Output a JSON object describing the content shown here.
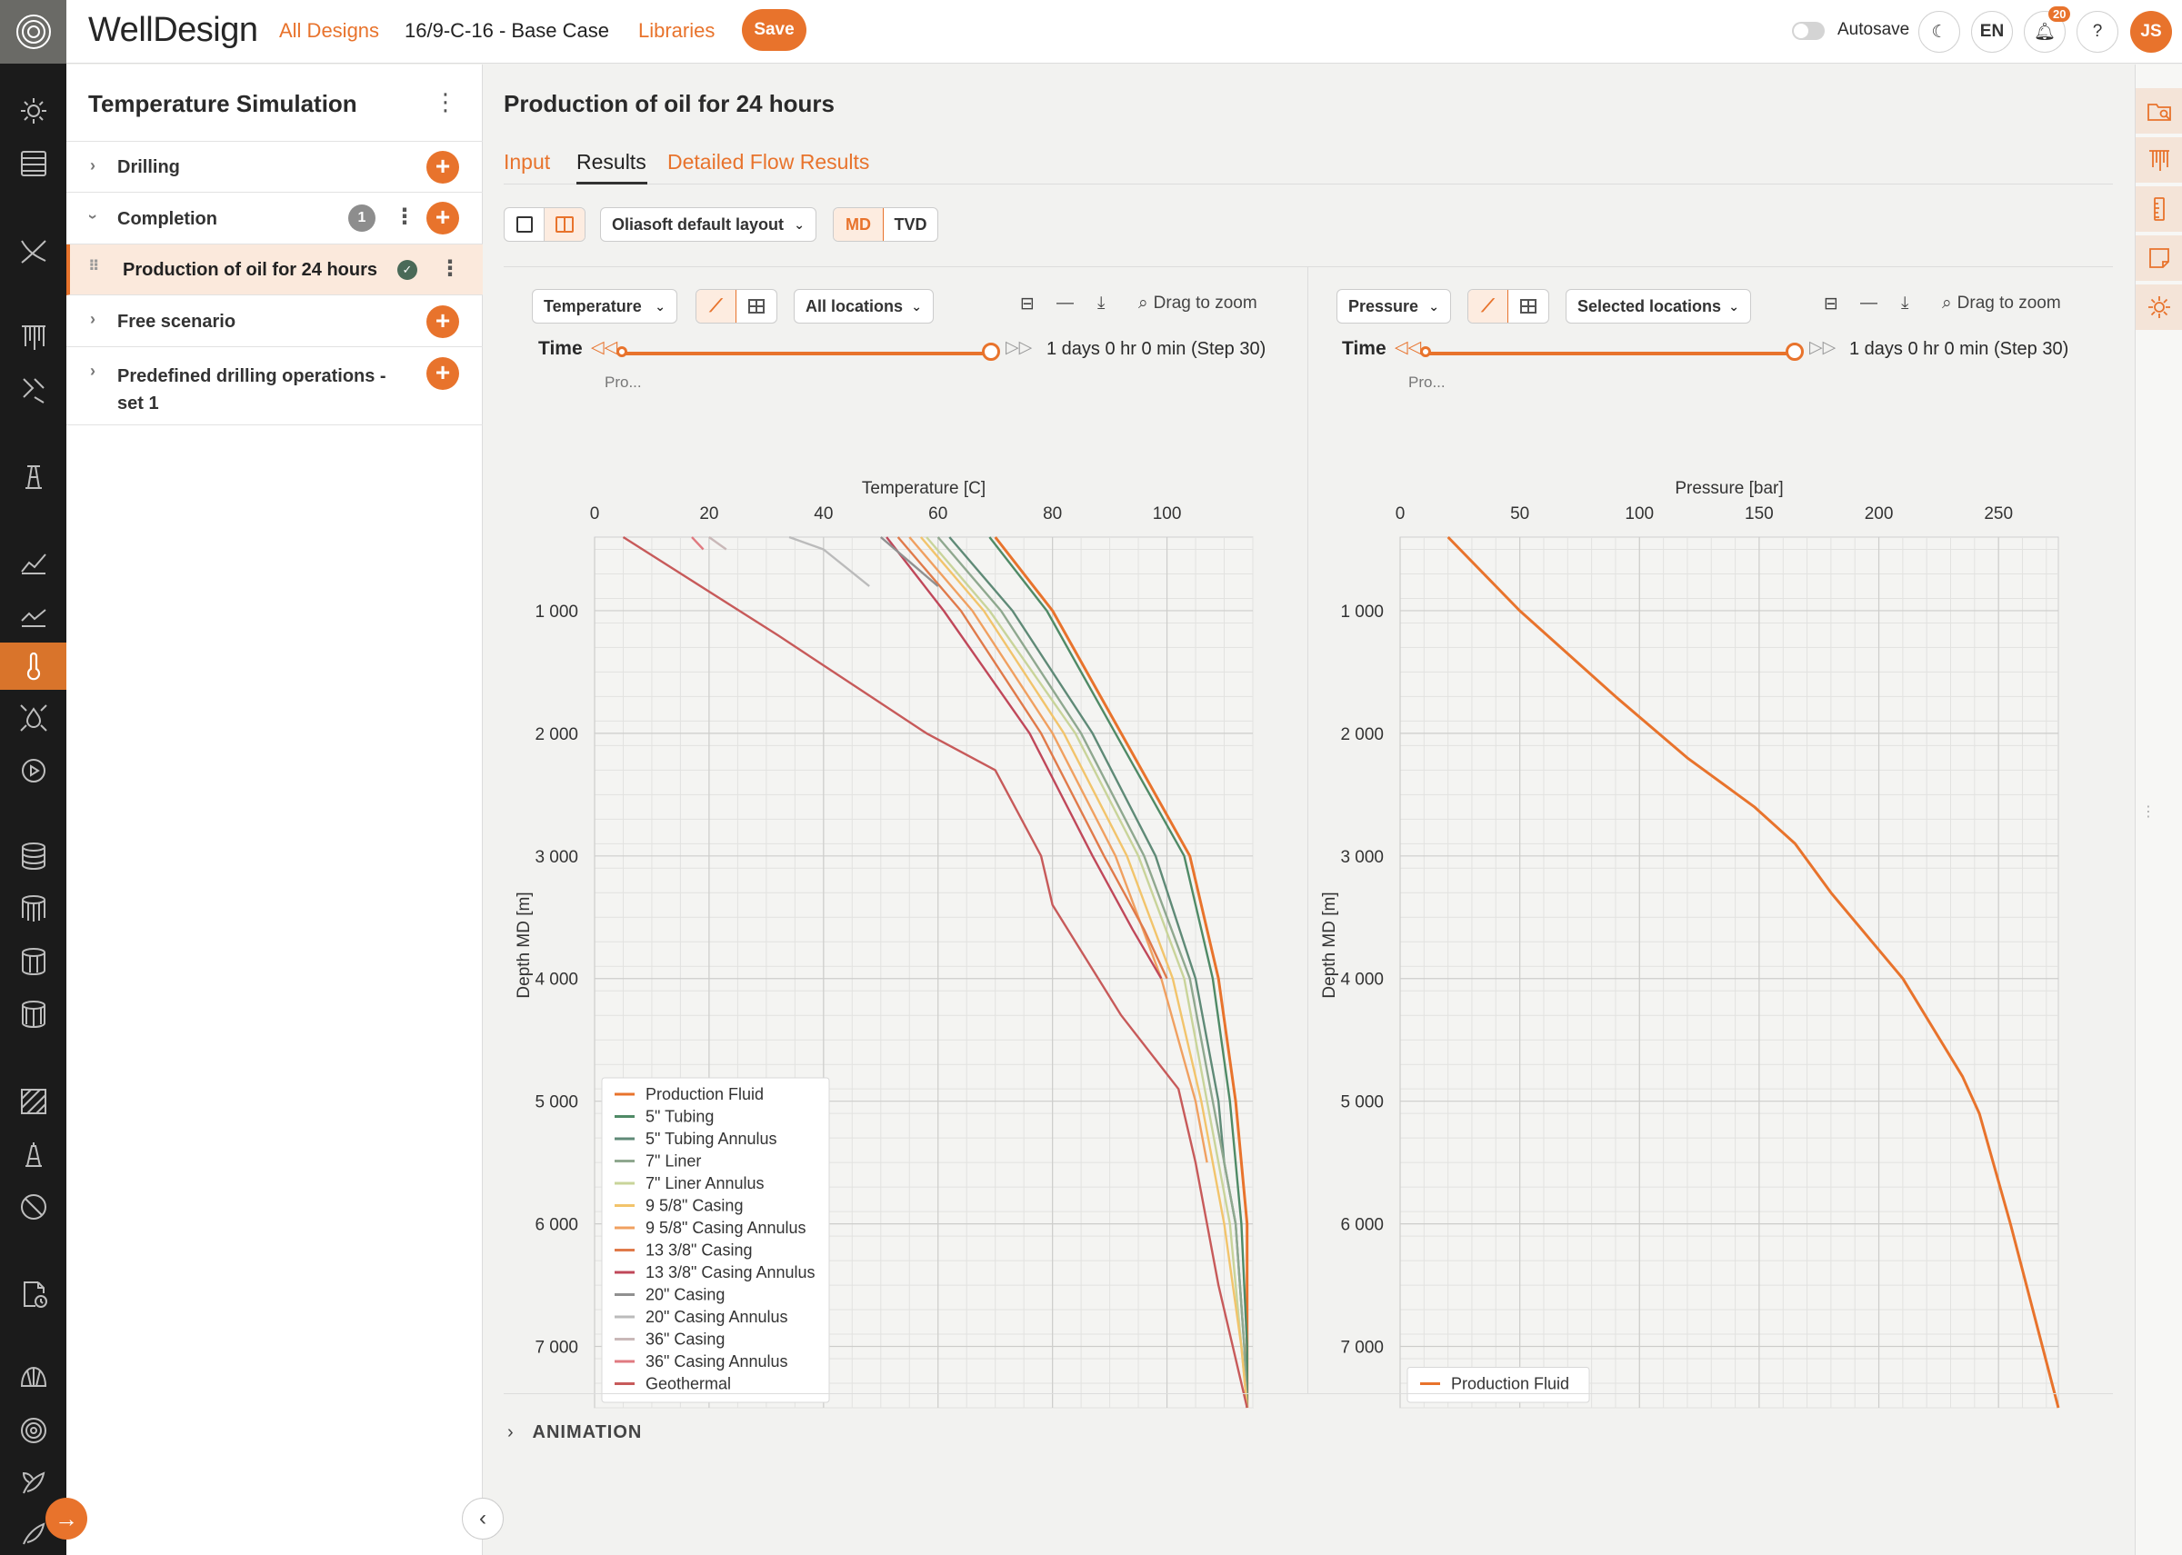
{
  "topbar": {
    "brand": "WellDesign",
    "nav_all_designs": "All Designs",
    "nav_current_design": "16/9-C-16 - Base Case",
    "nav_libraries": "Libraries",
    "save_label": "Save",
    "autosave_label": "Autosave",
    "language": "EN",
    "notification_count": "20",
    "help": "?",
    "user_initials": "JS"
  },
  "sidebar": {
    "title": "Temperature Simulation",
    "items": [
      {
        "label": "Drilling"
      },
      {
        "label": "Completion",
        "count": "1"
      },
      {
        "label": "Production of oil for 24 hours"
      },
      {
        "label": "Free scenario"
      },
      {
        "label": "Predefined drilling operations - set 1"
      }
    ]
  },
  "main": {
    "title": "Production of oil for 24 hours",
    "tabs": [
      {
        "label": "Input"
      },
      {
        "label": "Results"
      },
      {
        "label": "Detailed Flow Results"
      }
    ],
    "layout_select": "Oliasoft default layout",
    "md_label": "MD",
    "tvd_label": "TVD",
    "animation_label": "ANIMATION"
  },
  "panels": {
    "left": {
      "variable": "Temperature",
      "locations": "All locations",
      "drag_to_zoom": "Drag to zoom",
      "time_label": "Time",
      "time_value": "1 days 0 hr 0 min (Step 30)",
      "truncated_label": "Pro..."
    },
    "right": {
      "variable": "Pressure",
      "locations": "Selected locations",
      "drag_to_zoom": "Drag to zoom",
      "time_label": "Time",
      "time_value": "1 days 0 hr 0 min (Step 30)",
      "truncated_label": "Pro..."
    }
  },
  "chart_data": [
    {
      "type": "line",
      "xlabel": "Temperature [C]",
      "ylabel": "Depth MD [m]",
      "xlim": [
        0,
        115
      ],
      "ylim": [
        400,
        7500
      ],
      "y_inverted": true,
      "x_axis_position": "top",
      "x_ticks": [
        0,
        20,
        40,
        60,
        80,
        100
      ],
      "y_ticks": [
        1000,
        2000,
        3000,
        4000,
        5000,
        6000,
        7000
      ],
      "y_tick_labels": [
        "1 000",
        "2 000",
        "3 000",
        "4 000",
        "5 000",
        "6 000",
        "7 000"
      ],
      "grid": true,
      "legend_position": "bottom-left",
      "series": [
        {
          "name": "Production Fluid",
          "color": "#e8732c",
          "points": [
            [
              70,
              400
            ],
            [
              80,
              1000
            ],
            [
              92,
              2000
            ],
            [
              104,
              3000
            ],
            [
              109,
              4000
            ],
            [
              112,
              5000
            ],
            [
              113,
              5500
            ],
            [
              114,
              6000
            ],
            [
              114,
              7000
            ],
            [
              114,
              7500
            ]
          ]
        },
        {
          "name": "5\" Tubing",
          "color": "#4f8a66",
          "points": [
            [
              69,
              400
            ],
            [
              79,
              1000
            ],
            [
              91,
              2000
            ],
            [
              103,
              3000
            ],
            [
              108,
              4000
            ],
            [
              111,
              5000
            ],
            [
              112,
              5500
            ],
            [
              113,
              6000
            ],
            [
              114,
              7000
            ],
            [
              114,
              7500
            ]
          ]
        },
        {
          "name": "5\" Tubing Annulus",
          "color": "#5f8a77",
          "points": [
            [
              62,
              400
            ],
            [
              73,
              1000
            ],
            [
              87,
              2000
            ],
            [
              98,
              3000
            ],
            [
              105,
              4000
            ],
            [
              109,
              5000
            ],
            [
              110,
              5500
            ],
            [
              112,
              6000
            ],
            [
              113.5,
              7000
            ],
            [
              114,
              7500
            ]
          ]
        },
        {
          "name": "7\" Liner",
          "color": "#8fa88f",
          "points": [
            [
              60,
              400
            ],
            [
              71,
              1000
            ],
            [
              85,
              2000
            ],
            [
              96,
              3000
            ],
            [
              104,
              4000
            ],
            [
              108,
              5000
            ],
            [
              110,
              5500
            ],
            [
              112,
              6000
            ],
            [
              113.5,
              7000
            ],
            [
              114,
              7500
            ]
          ]
        },
        {
          "name": "7\" Liner Annulus",
          "color": "#c9d49a",
          "points": [
            [
              58,
              400
            ],
            [
              69,
              1000
            ],
            [
              84,
              2000
            ],
            [
              95,
              3000
            ],
            [
              103,
              4000
            ],
            [
              107,
              5000
            ],
            [
              109,
              5500
            ],
            [
              111,
              6000
            ],
            [
              113,
              7000
            ],
            [
              114,
              7500
            ]
          ]
        },
        {
          "name": "9 5/8\" Casing",
          "color": "#f2c46b",
          "points": [
            [
              57,
              400
            ],
            [
              68,
              1000
            ],
            [
              82,
              2000
            ],
            [
              93,
              3000
            ],
            [
              101,
              4000
            ],
            [
              106,
              5000
            ],
            [
              108,
              5500
            ],
            [
              110,
              6000
            ],
            [
              113,
              7000
            ],
            [
              114,
              7500
            ]
          ]
        },
        {
          "name": "9 5/8\" Casing Annulus",
          "color": "#f0a060",
          "points": [
            [
              55,
              400
            ],
            [
              66,
              1000
            ],
            [
              80,
              2000
            ],
            [
              91,
              3000
            ],
            [
              99,
              4000
            ],
            [
              105,
              5000
            ],
            [
              107,
              5500
            ]
          ]
        },
        {
          "name": "13 3/8\" Casing",
          "color": "#e07a4a",
          "points": [
            [
              53,
              400
            ],
            [
              64,
              1000
            ],
            [
              78,
              2000
            ],
            [
              89,
              3000
            ],
            [
              96,
              3600
            ],
            [
              100,
              4000
            ]
          ]
        },
        {
          "name": "13 3/8\" Casing Annulus",
          "color": "#c0485a",
          "points": [
            [
              51,
              400
            ],
            [
              61,
              1000
            ],
            [
              76,
              2000
            ],
            [
              87,
              3000
            ],
            [
              94,
              3600
            ],
            [
              99,
              4000
            ]
          ]
        },
        {
          "name": "20\" Casing",
          "color": "#909090",
          "points": [
            [
              50,
              400
            ],
            [
              60,
              800
            ]
          ]
        },
        {
          "name": "20\" Casing Annulus",
          "color": "#bbbbbb",
          "points": [
            [
              34,
              400
            ],
            [
              40,
              500
            ],
            [
              48,
              800
            ]
          ]
        },
        {
          "name": "36\" Casing",
          "color": "#c9b8b8",
          "points": [
            [
              20,
              400
            ],
            [
              23,
              500
            ]
          ]
        },
        {
          "name": "36\" Casing Annulus",
          "color": "#e07a80",
          "points": [
            [
              17,
              400
            ],
            [
              19,
              500
            ]
          ]
        },
        {
          "name": "Geothermal",
          "color": "#c75a5a",
          "points": [
            [
              5,
              400
            ],
            [
              32,
              1200
            ],
            [
              58,
              2000
            ],
            [
              70,
              2300
            ],
            [
              78,
              3000
            ],
            [
              80,
              3400
            ],
            [
              92,
              4300
            ],
            [
              102,
              4900
            ],
            [
              105,
              5500
            ],
            [
              109,
              6500
            ],
            [
              114,
              7500
            ]
          ]
        }
      ]
    },
    {
      "type": "line",
      "xlabel": "Pressure [bar]",
      "ylabel": "Depth MD [m]",
      "xlim": [
        0,
        275
      ],
      "ylim": [
        400,
        7500
      ],
      "y_inverted": true,
      "x_axis_position": "top",
      "x_ticks": [
        0,
        50,
        100,
        150,
        200,
        250
      ],
      "y_ticks": [
        1000,
        2000,
        3000,
        4000,
        5000,
        6000,
        7000
      ],
      "y_tick_labels": [
        "1 000",
        "2 000",
        "3 000",
        "4 000",
        "5 000",
        "6 000",
        "7 000"
      ],
      "grid": true,
      "legend_position": "bottom-left",
      "series": [
        {
          "name": "Production Fluid",
          "color": "#e8732c",
          "points": [
            [
              20,
              400
            ],
            [
              50,
              1000
            ],
            [
              90,
              1700
            ],
            [
              120,
              2200
            ],
            [
              148,
              2600
            ],
            [
              165,
              2900
            ],
            [
              180,
              3300
            ],
            [
              210,
              4000
            ],
            [
              235,
              4800
            ],
            [
              242,
              5100
            ],
            [
              255,
              6000
            ],
            [
              275,
              7500
            ]
          ]
        }
      ]
    }
  ]
}
